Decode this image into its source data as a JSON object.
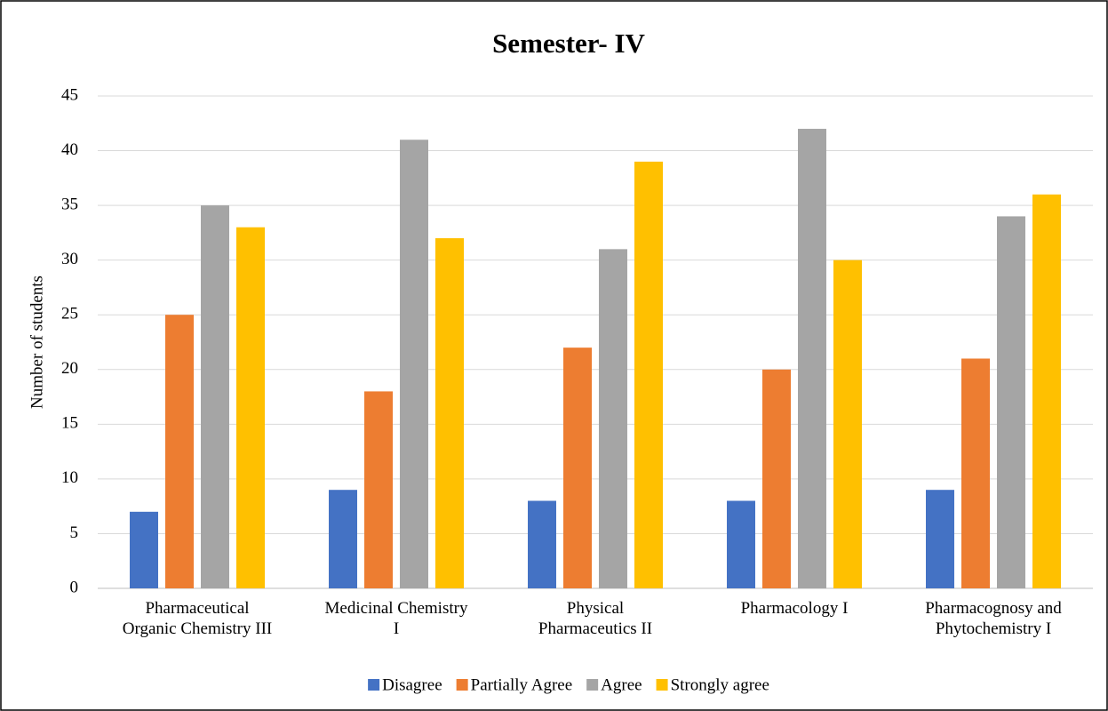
{
  "chart_data": {
    "type": "bar",
    "title": "Semester- IV",
    "y_label": "Number of students",
    "categories": [
      "Pharmaceutical Organic Chemistry III",
      "Medicinal Chemistry I",
      "Physical Pharmaceutics II",
      "Pharmacology I",
      "Pharmacognosy and Phytochemistry I"
    ],
    "series": [
      {
        "name": "Disagree",
        "color": "#4472c4",
        "values": [
          7,
          9,
          8,
          8,
          9
        ]
      },
      {
        "name": "Partially Agree",
        "color": "#ed7d31",
        "values": [
          25,
          18,
          22,
          20,
          21
        ]
      },
      {
        "name": "Agree",
        "color": "#a5a5a5",
        "values": [
          35,
          41,
          31,
          42,
          34
        ]
      },
      {
        "name": "Strongly agree",
        "color": "#ffc000",
        "values": [
          33,
          32,
          39,
          30,
          36
        ]
      }
    ],
    "ylim": [
      0,
      45
    ],
    "yticks": [
      0,
      5,
      10,
      15,
      20,
      25,
      30,
      35,
      40,
      45
    ],
    "grid": true,
    "legend": "bottom"
  }
}
